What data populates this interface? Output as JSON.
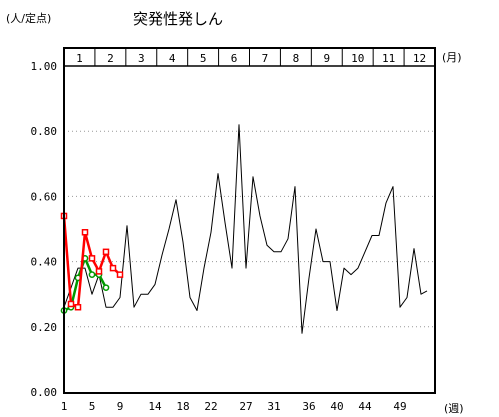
{
  "chart_data": {
    "type": "line",
    "title": "突発性発しん",
    "ylabel": "(人/定点)",
    "xlabel": "(週)",
    "month_unit": "(月)",
    "months": [
      "1",
      "2",
      "3",
      "4",
      "5",
      "6",
      "7",
      "8",
      "9",
      "10",
      "11",
      "12"
    ],
    "ylim": [
      0,
      1.0
    ],
    "yticks": [
      "0.00",
      "0.20",
      "0.40",
      "0.60",
      "0.80",
      "1.00"
    ],
    "xlim": [
      1,
      52
    ],
    "xticks": [
      "1",
      "5",
      "9",
      "14",
      "18",
      "22",
      "27",
      "31",
      "36",
      "40",
      "44",
      "49"
    ],
    "grid": true,
    "series": [
      {
        "color": "#000000",
        "marker": "none",
        "x": [
          1,
          2,
          3,
          4,
          5,
          6,
          7,
          8,
          9,
          10,
          11,
          12,
          13,
          14,
          15,
          16,
          17,
          18,
          19,
          20,
          21,
          22,
          23,
          24,
          25,
          26,
          27,
          28,
          29,
          30,
          31,
          32,
          33,
          34,
          35,
          36,
          37,
          38,
          39,
          40,
          41,
          42,
          43,
          44,
          45,
          46,
          47,
          48,
          49,
          50,
          51,
          52
        ],
        "values": [
          0.26,
          0.32,
          0.38,
          0.38,
          0.3,
          0.36,
          0.26,
          0.26,
          0.29,
          0.51,
          0.26,
          0.3,
          0.3,
          0.33,
          0.42,
          0.5,
          0.59,
          0.46,
          0.29,
          0.25,
          0.38,
          0.49,
          0.67,
          0.52,
          0.38,
          0.82,
          0.38,
          0.66,
          0.54,
          0.45,
          0.43,
          0.43,
          0.47,
          0.63,
          0.18,
          0.35,
          0.5,
          0.4,
          0.4,
          0.25,
          0.38,
          0.36,
          0.38,
          0.43,
          0.48,
          0.48,
          0.58,
          0.63,
          0.26,
          0.29,
          0.44,
          0.3
        ],
        "tail": 0.31
      },
      {
        "color": "#009900",
        "marker": "circle",
        "x": [
          1,
          2,
          3,
          4,
          5,
          6,
          7
        ],
        "values": [
          0.25,
          0.26,
          0.35,
          0.41,
          0.36,
          0.36,
          0.32
        ]
      },
      {
        "color": "#ff0000",
        "marker": "square",
        "x": [
          1,
          2,
          3,
          4,
          5,
          6,
          7,
          8,
          9
        ],
        "values": [
          0.54,
          0.27,
          0.26,
          0.49,
          0.41,
          0.37,
          0.43,
          0.38,
          0.36
        ]
      }
    ]
  }
}
